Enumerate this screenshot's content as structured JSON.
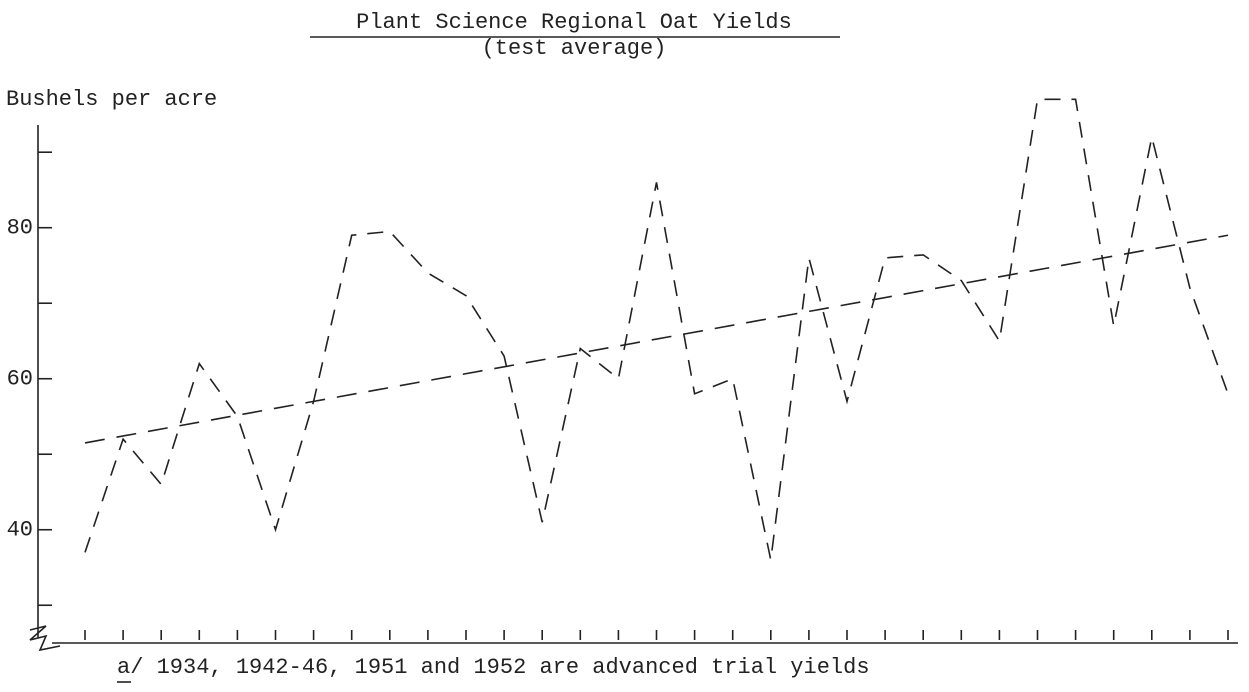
{
  "chart_data": {
    "type": "line",
    "title": "Plant Science Regional Oat Yields",
    "subtitle": "(test average)",
    "y_label": "Bushels per acre",
    "footnote": "a/ 1934, 1942-46, 1951 and 1952 are advanced trial yields",
    "categories": [
      null,
      null,
      null,
      null,
      null,
      null,
      null,
      null,
      null,
      null,
      null,
      null,
      null,
      null,
      null,
      null,
      null,
      null,
      null,
      null,
      null,
      null,
      null,
      null,
      null,
      null,
      null,
      null,
      null,
      null,
      null
    ],
    "series": [
      {
        "color": "#222222",
        "values": [
          37,
          52,
          46,
          62,
          55,
          40,
          57,
          79,
          79.5,
          74,
          71,
          63,
          41,
          64,
          60,
          86,
          58,
          60,
          36,
          76,
          57,
          76,
          76.4,
          73,
          65,
          97,
          97,
          67,
          92,
          72,
          58
        ]
      }
    ],
    "trend_line": [
      51.5,
      79
    ],
    "ylim": [
      25,
      94
    ],
    "yticks": [
      40,
      60,
      80
    ],
    "yminorticks": [
      30,
      50,
      70,
      90
    ]
  }
}
